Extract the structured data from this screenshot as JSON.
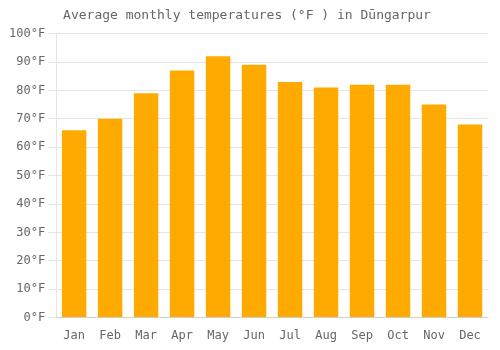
{
  "chart_data": {
    "type": "bar",
    "title": "Average monthly temperatures (°F ) in Dūngarpur",
    "categories": [
      "Jan",
      "Feb",
      "Mar",
      "Apr",
      "May",
      "Jun",
      "Jul",
      "Aug",
      "Sep",
      "Oct",
      "Nov",
      "Dec"
    ],
    "values": [
      66,
      70,
      79,
      87,
      92,
      89,
      83,
      81,
      82,
      82,
      75,
      68
    ],
    "color": "#FFAA00",
    "ylim": [
      0,
      100
    ],
    "yticks": [
      {
        "value": 0,
        "label": "0°F"
      },
      {
        "value": 10,
        "label": "10°F"
      },
      {
        "value": 20,
        "label": "20°F"
      },
      {
        "value": 30,
        "label": "30°F"
      },
      {
        "value": 40,
        "label": "40°F"
      },
      {
        "value": 50,
        "label": "50°F"
      },
      {
        "value": 60,
        "label": "60°F"
      },
      {
        "value": 70,
        "label": "70°F"
      },
      {
        "value": 80,
        "label": "80°F"
      },
      {
        "value": 90,
        "label": "90°F"
      },
      {
        "value": 100,
        "label": "100°F"
      }
    ],
    "grid": true
  }
}
